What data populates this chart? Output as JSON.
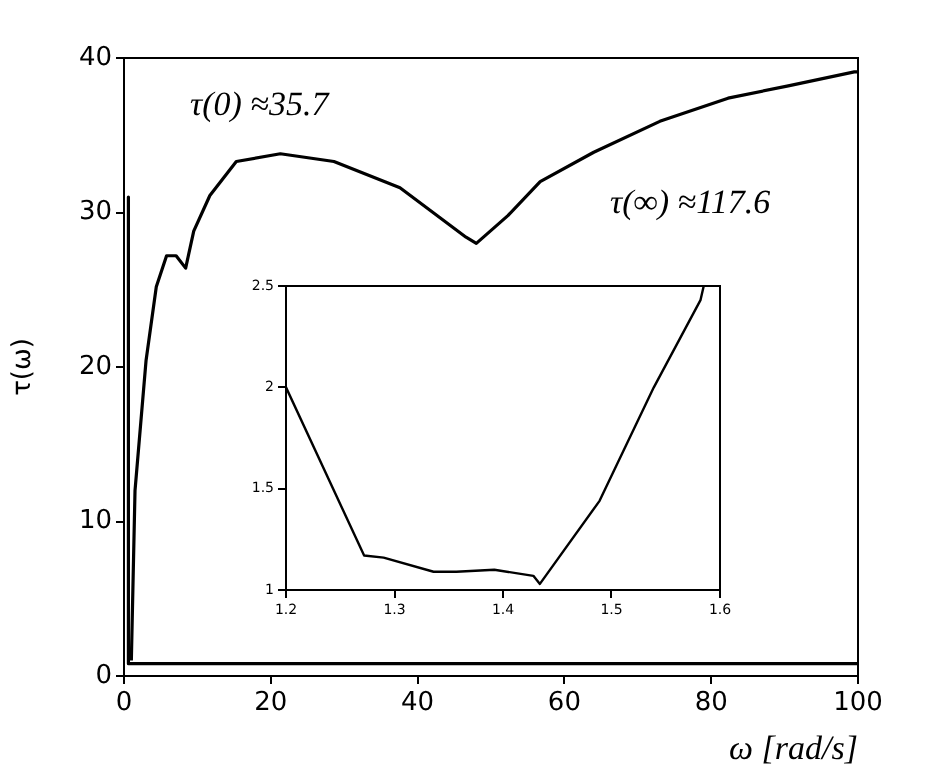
{
  "chart_data": [
    {
      "type": "line",
      "xlabel": "ω [rad/s]",
      "ylabel": "τ(ω)",
      "annotations": [
        "τ(0) ≈35.7",
        "τ(∞) ≈117.6"
      ],
      "xlim": [
        0,
        100
      ],
      "ylim": [
        0,
        40
      ],
      "xticks": [
        0,
        20,
        40,
        60,
        80,
        100
      ],
      "yticks": [
        0,
        10,
        20,
        30,
        40
      ],
      "marker": "none",
      "series": [
        {
          "color": "#000000",
          "x": [
            1,
            1.5,
            3,
            4.4,
            5.8,
            7.1,
            8.4,
            9.5,
            11.7,
            15.3,
            21.3,
            28.6,
            37.6,
            46.6,
            48,
            52.3,
            56.7,
            64,
            73,
            82.3,
            90.5,
            99.5,
            100
          ],
          "values": [
            1,
            12,
            20.4,
            25.2,
            27.2,
            27.2,
            26.4,
            28.8,
            31.1,
            33.3,
            33.8,
            33.3,
            31.6,
            28.4,
            28,
            29.8,
            32,
            33.9,
            35.9,
            37.4,
            38.2,
            39.1,
            39.1
          ]
        },
        {
          "color": "#000000",
          "x": [
            0.6,
            0.6,
            100
          ],
          "values": [
            31,
            0.8,
            0.8
          ]
        }
      ]
    },
    {
      "type": "line",
      "xlim": [
        1.2,
        1.6
      ],
      "ylim": [
        1,
        2.5
      ],
      "xticks": [
        1.2,
        1.3,
        1.4,
        1.5,
        1.6
      ],
      "yticks": [
        1,
        1.5,
        2,
        2.5
      ],
      "marker": "none",
      "series": [
        {
          "color": "#000000",
          "x": [
            1.2,
            1.272,
            1.29,
            1.336,
            1.357,
            1.392,
            1.428,
            1.434,
            1.489,
            1.539,
            1.582,
            1.585
          ],
          "values": [
            2.0,
            1.17,
            1.16,
            1.09,
            1.09,
            1.1,
            1.07,
            1.03,
            1.44,
            2.0,
            2.43,
            2.5
          ]
        }
      ]
    }
  ]
}
